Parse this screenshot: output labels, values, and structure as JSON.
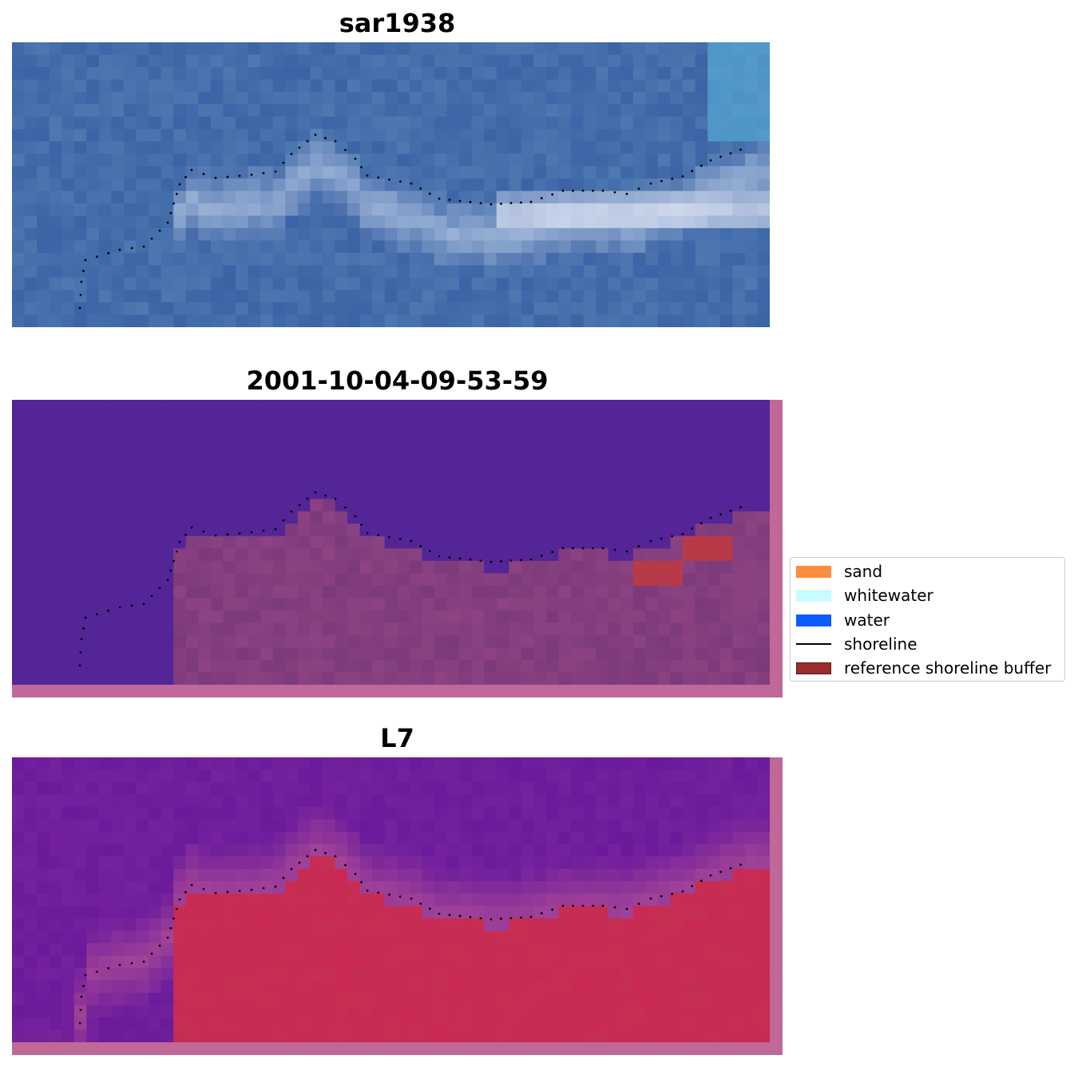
{
  "panels": [
    {
      "title": "sar1938",
      "style": "rgb"
    },
    {
      "title": "2001-10-04-09-53-59",
      "style": "classified"
    },
    {
      "title": "L7",
      "style": "index"
    }
  ],
  "legend": {
    "items": [
      {
        "label": "sand",
        "type": "patch",
        "color": "#ff8c3a"
      },
      {
        "label": "whitewater",
        "type": "patch",
        "color": "#c8fcff"
      },
      {
        "label": "water",
        "type": "patch",
        "color": "#0a5cff"
      },
      {
        "label": "shoreline",
        "type": "line",
        "color": "#000000"
      },
      {
        "label": "reference shoreline buffer",
        "type": "patch",
        "color": "#9b2c2c"
      }
    ]
  },
  "colors": {
    "sar_base": "#3d6aa8",
    "classified_water": "#532597",
    "classified_land": "#7b3a7a",
    "index_water": "#6a1a9a",
    "index_land": "#c92a54",
    "frame_pink": "#c06898",
    "buffer_red": "#b83a48"
  }
}
